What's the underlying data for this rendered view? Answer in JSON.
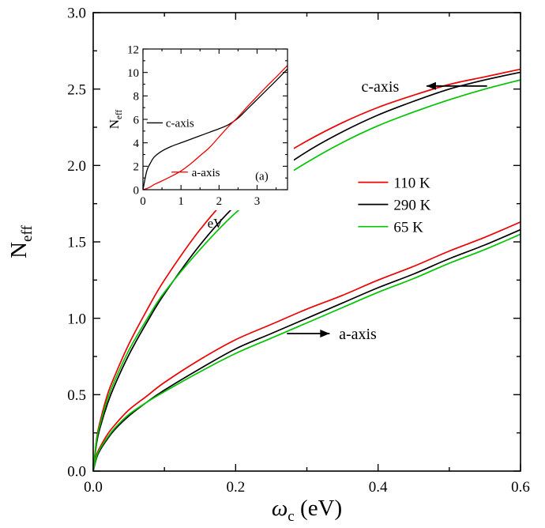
{
  "figure": {
    "background": "#ffffff",
    "colors": {
      "red": "#ee0000",
      "black": "#000000",
      "green": "#00c400"
    }
  },
  "chart_data": [
    {
      "id": "main",
      "type": "line",
      "title": "",
      "xlabel": "ω_c (eV)",
      "ylabel": "N_eff",
      "xlim": [
        0,
        0.6
      ],
      "ylim": [
        0,
        3.0
      ],
      "grid": false,
      "x_major_ticks": [
        0.0,
        0.2,
        0.4,
        0.6
      ],
      "x_tick_labels": [
        "0.0",
        "0.2",
        "0.4",
        "0.6"
      ],
      "x_minor_ticks": [
        0.1,
        0.3,
        0.5
      ],
      "y_major_ticks": [
        0.0,
        0.5,
        1.0,
        1.5,
        2.0,
        2.5,
        3.0
      ],
      "y_tick_labels": [
        "0.0",
        "0.5",
        "1.0",
        "1.5",
        "2.0",
        "2.5",
        "3.0"
      ],
      "y_minor_ticks": [
        0.25,
        0.75,
        1.25,
        1.75,
        2.25,
        2.75
      ],
      "x": [
        0,
        0.005,
        0.01,
        0.02,
        0.03,
        0.05,
        0.075,
        0.1,
        0.15,
        0.2,
        0.25,
        0.3,
        0.35,
        0.4,
        0.45,
        0.5,
        0.55,
        0.6
      ],
      "series": [
        {
          "name": "c-axis 110 K",
          "color": "#ee0000",
          "values": [
            0,
            0.22,
            0.33,
            0.5,
            0.62,
            0.83,
            1.05,
            1.25,
            1.58,
            1.84,
            2.02,
            2.16,
            2.28,
            2.38,
            2.46,
            2.53,
            2.58,
            2.63
          ]
        },
        {
          "name": "c-axis 290 K",
          "color": "#000000",
          "values": [
            0,
            0.19,
            0.29,
            0.44,
            0.56,
            0.76,
            0.97,
            1.16,
            1.48,
            1.74,
            1.93,
            2.09,
            2.22,
            2.33,
            2.42,
            2.5,
            2.56,
            2.61
          ]
        },
        {
          "name": "c-axis 65 K",
          "color": "#00c400",
          "values": [
            0,
            0.21,
            0.31,
            0.47,
            0.59,
            0.79,
            0.99,
            1.17,
            1.45,
            1.69,
            1.87,
            2.02,
            2.15,
            2.26,
            2.35,
            2.43,
            2.5,
            2.56
          ]
        },
        {
          "name": "a-axis 110 K",
          "color": "#ee0000",
          "values": [
            0,
            0.11,
            0.16,
            0.24,
            0.3,
            0.4,
            0.49,
            0.58,
            0.73,
            0.86,
            0.96,
            1.06,
            1.15,
            1.25,
            1.34,
            1.44,
            1.53,
            1.63
          ]
        },
        {
          "name": "a-axis 290 K",
          "color": "#000000",
          "values": [
            0,
            0.09,
            0.14,
            0.21,
            0.27,
            0.36,
            0.45,
            0.53,
            0.67,
            0.8,
            0.9,
            1.0,
            1.1,
            1.2,
            1.29,
            1.39,
            1.48,
            1.58
          ]
        },
        {
          "name": "a-axis 65 K",
          "color": "#00c400",
          "values": [
            0,
            0.1,
            0.15,
            0.22,
            0.28,
            0.37,
            0.45,
            0.52,
            0.65,
            0.77,
            0.87,
            0.97,
            1.07,
            1.17,
            1.26,
            1.36,
            1.45,
            1.55
          ]
        }
      ],
      "legend": {
        "position": "middle-right",
        "entries": [
          {
            "label": "110 K",
            "color": "#ee0000",
            "x": 0.372,
            "y": 1.89
          },
          {
            "label": "290 K",
            "color": "#000000",
            "x": 0.372,
            "y": 1.745
          },
          {
            "label": "65 K",
            "color": "#00c400",
            "x": 0.372,
            "y": 1.6
          }
        ]
      },
      "annotations": [
        {
          "text": "c-axis",
          "x": 0.403,
          "y": 2.52,
          "anchor": "middle",
          "line": {
            "x1": 0.468,
            "y1": 2.52,
            "x2": 0.553,
            "y2": 2.52,
            "color": "#000000",
            "arrow": "start"
          }
        },
        {
          "text": "a-axis",
          "x": 0.345,
          "y": 0.9,
          "anchor": "start",
          "line": {
            "x1": 0.272,
            "y1": 0.9,
            "x2": 0.332,
            "y2": 0.9,
            "color": "#000000",
            "arrow": "end"
          }
        }
      ]
    },
    {
      "id": "inset",
      "type": "line",
      "title": "",
      "xlabel": "eV",
      "ylabel": "N_eff",
      "xlim": [
        0,
        3.8
      ],
      "ylim": [
        0,
        12
      ],
      "grid": false,
      "x_major_ticks": [
        0,
        1,
        2,
        3
      ],
      "x_tick_labels": [
        "0",
        "1",
        "2",
        "3"
      ],
      "x_minor_ticks": [
        0.5,
        1.5,
        2.5,
        3.5
      ],
      "y_major_ticks": [
        0,
        2,
        4,
        6,
        8,
        10,
        12
      ],
      "y_tick_labels": [
        "0",
        "2",
        "4",
        "6",
        "8",
        "10",
        "12"
      ],
      "y_minor_ticks": [
        1,
        3,
        5,
        7,
        9,
        11
      ],
      "x": [
        0,
        0.1,
        0.2,
        0.3,
        0.5,
        0.75,
        1.0,
        1.25,
        1.5,
        1.75,
        2.0,
        2.25,
        2.5,
        2.75,
        3.0,
        3.25,
        3.5,
        3.8
      ],
      "series": [
        {
          "name": "c-axis",
          "color": "#000000",
          "values": [
            0,
            1.6,
            2.3,
            2.8,
            3.3,
            3.7,
            4.0,
            4.3,
            4.6,
            4.9,
            5.2,
            5.55,
            6.1,
            6.9,
            7.7,
            8.5,
            9.3,
            10.3
          ]
        },
        {
          "name": "a-axis",
          "color": "#ee0000",
          "values": [
            0,
            0.1,
            0.25,
            0.45,
            0.75,
            1.15,
            1.6,
            2.2,
            2.9,
            3.6,
            4.5,
            5.4,
            6.2,
            7.1,
            7.95,
            8.8,
            9.6,
            10.6
          ]
        }
      ],
      "annotations": [
        {
          "text": "c-axis",
          "x": 0.6,
          "y": 5.7,
          "anchor": "start",
          "line": {
            "x1": 0.1,
            "y1": 5.7,
            "x2": 0.52,
            "y2": 5.7,
            "color": "#000000"
          }
        },
        {
          "text": "a-axis",
          "x": 1.28,
          "y": 1.5,
          "anchor": "start",
          "line": {
            "x1": 0.75,
            "y1": 1.5,
            "x2": 1.18,
            "y2": 1.5,
            "color": "#ee0000"
          }
        },
        {
          "text": "(a)",
          "x": 2.95,
          "y": 1.2,
          "anchor": "start"
        }
      ]
    }
  ]
}
